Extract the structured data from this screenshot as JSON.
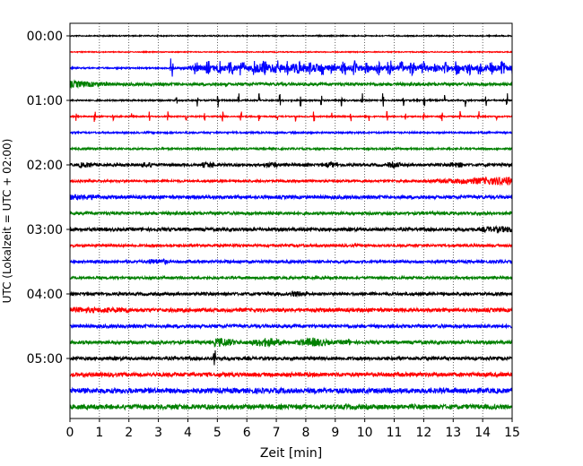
{
  "chart_data": {
    "type": "line",
    "title": "",
    "xlabel": "Zeit  [min]",
    "ylabel": "UTC (Lokalzeit = UTC + 02:00)",
    "xlim": [
      0,
      15
    ],
    "xticks": [
      "0",
      "1",
      "2",
      "3",
      "4",
      "5",
      "6",
      "7",
      "8",
      "9",
      "10",
      "11",
      "12",
      "13",
      "14",
      "15"
    ],
    "yticks": [
      {
        "label": "00:00",
        "row": 0
      },
      {
        "label": "01:00",
        "row": 4
      },
      {
        "label": "02:00",
        "row": 8
      },
      {
        "label": "03:00",
        "row": 12
      },
      {
        "label": "04:00",
        "row": 16
      },
      {
        "label": "05:00",
        "row": 20
      }
    ],
    "grid_x": true,
    "colors": [
      "#000000",
      "#ff0000",
      "#0000ff",
      "#008000"
    ],
    "rows": [
      {
        "start": "00:00",
        "color": "#000000",
        "activity": "quiet"
      },
      {
        "start": "00:15",
        "color": "#ff0000",
        "activity": "quiet"
      },
      {
        "start": "00:30",
        "color": "#0000ff",
        "activity": "dense bursts from 3.4 min"
      },
      {
        "start": "00:45",
        "color": "#008000",
        "activity": "noisy start"
      },
      {
        "start": "01:00",
        "color": "#000000",
        "activity": "periodic spikes"
      },
      {
        "start": "01:15",
        "color": "#ff0000",
        "activity": "periodic spikes"
      },
      {
        "start": "01:30",
        "color": "#0000ff",
        "activity": "quiet"
      },
      {
        "start": "01:45",
        "color": "#008000",
        "activity": "quiet"
      },
      {
        "start": "02:00",
        "color": "#000000",
        "activity": "noise"
      },
      {
        "start": "02:15",
        "color": "#ff0000",
        "activity": "noise rising at end"
      },
      {
        "start": "02:30",
        "color": "#0000ff",
        "activity": "noise"
      },
      {
        "start": "02:45",
        "color": "#008000",
        "activity": "noise"
      },
      {
        "start": "03:00",
        "color": "#000000",
        "activity": "noise"
      },
      {
        "start": "03:15",
        "color": "#ff0000",
        "activity": "noise"
      },
      {
        "start": "03:30",
        "color": "#0000ff",
        "activity": "noise"
      },
      {
        "start": "03:45",
        "color": "#008000",
        "activity": "noise"
      },
      {
        "start": "04:00",
        "color": "#000000",
        "activity": "noise"
      },
      {
        "start": "04:15",
        "color": "#ff0000",
        "activity": "noise"
      },
      {
        "start": "04:30",
        "color": "#0000ff",
        "activity": "noise"
      },
      {
        "start": "04:45",
        "color": "#008000",
        "activity": "event 5-9.5 min"
      },
      {
        "start": "05:00",
        "color": "#000000",
        "activity": "spike near 4.9 min"
      },
      {
        "start": "05:15",
        "color": "#ff0000",
        "activity": "noise"
      },
      {
        "start": "05:30",
        "color": "#0000ff",
        "activity": "noise"
      },
      {
        "start": "05:45",
        "color": "#008000",
        "activity": "noise"
      }
    ]
  }
}
